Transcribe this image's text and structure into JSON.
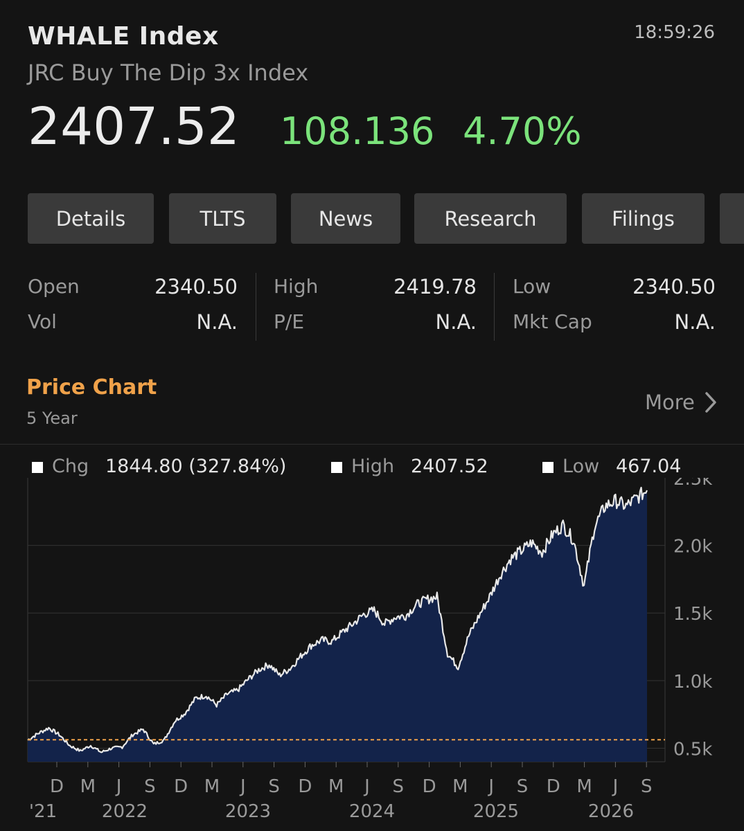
{
  "header": {
    "title": "WHALE Index",
    "subtitle": "JRC Buy The Dip 3x Index",
    "time": "18:59:26",
    "price": "2407.52",
    "change": "108.136",
    "change_pct": "4.70%",
    "change_color": "#7be37b"
  },
  "tabs": [
    "Details",
    "TLTS",
    "News",
    "Research",
    "Filings"
  ],
  "stats": {
    "open_label": "Open",
    "open": "2340.50",
    "high_label": "High",
    "high": "2419.78",
    "low_label": "Low",
    "low": "2340.50",
    "vol_label": "Vol",
    "vol": "N.A.",
    "pe_label": "P/E",
    "pe": "N.A.",
    "mktcap_label": "Mkt Cap",
    "mktcap": "N.A."
  },
  "section": {
    "title": "Price Chart",
    "subtitle": "5 Year",
    "more_label": "More",
    "title_color": "#f0a24a"
  },
  "legend": {
    "chg_label": "Chg",
    "chg_value": "1844.80 (327.84%)",
    "high_label": "High",
    "high_value": "2407.52",
    "low_label": "Low",
    "low_value": "467.04"
  },
  "chart_data": {
    "type": "area",
    "y_ticks": [
      "2.5k",
      "2.0k",
      "1.5k",
      "1.0k",
      "0.5k"
    ],
    "ylim": [
      400,
      2500
    ],
    "x_month_ticks": [
      "D",
      "M",
      "J",
      "S",
      "D",
      "M",
      "J",
      "S",
      "D",
      "M",
      "J",
      "S",
      "D",
      "M",
      "J",
      "S",
      "D",
      "M",
      "J",
      "S"
    ],
    "x_year_ticks": [
      "'21",
      "2022",
      "2023",
      "2024",
      "2025",
      "2026"
    ],
    "reference_line": 562.72,
    "reference_color": "#f0a24a",
    "fill_color": "#13234a",
    "line_color": "#e8e8e8",
    "series": [
      {
        "x": [
          "2021-09",
          "2021-10",
          "2021-11",
          "2021-12",
          "2022-01",
          "2022-02",
          "2022-03",
          "2022-04",
          "2022-05",
          "2022-06",
          "2022-07",
          "2022-08",
          "2022-09",
          "2022-10",
          "2022-11",
          "2022-12",
          "2023-01",
          "2023-02",
          "2023-03",
          "2023-04",
          "2023-05",
          "2023-06",
          "2023-07",
          "2023-08",
          "2023-09",
          "2023-10",
          "2023-11",
          "2023-12",
          "2024-01",
          "2024-02",
          "2024-03",
          "2024-04",
          "2024-05",
          "2024-06",
          "2024-07",
          "2024-08",
          "2024-09",
          "2024-10",
          "2024-11",
          "2024-12",
          "2025-01",
          "2025-02",
          "2025-03",
          "2025-04",
          "2025-05",
          "2025-06",
          "2025-07",
          "2025-08",
          "2025-09",
          "2025-10",
          "2025-11",
          "2025-12",
          "2026-01",
          "2026-02",
          "2026-03",
          "2026-04",
          "2026-05",
          "2026-06",
          "2026-07",
          "2026-08"
        ],
        "values": [
          560,
          610,
          650,
          600,
          520,
          480,
          520,
          470,
          500,
          510,
          600,
          640,
          530,
          560,
          700,
          760,
          870,
          890,
          820,
          900,
          930,
          1010,
          1080,
          1120,
          1040,
          1090,
          1180,
          1260,
          1300,
          1290,
          1360,
          1420,
          1490,
          1520,
          1420,
          1470,
          1480,
          1560,
          1600,
          1620,
          1200,
          1100,
          1330,
          1480,
          1620,
          1780,
          1900,
          1960,
          2020,
          1950,
          2080,
          2150,
          2040,
          1700,
          2140,
          2290,
          2330,
          2290,
          2350,
          2407.52
        ]
      }
    ]
  }
}
